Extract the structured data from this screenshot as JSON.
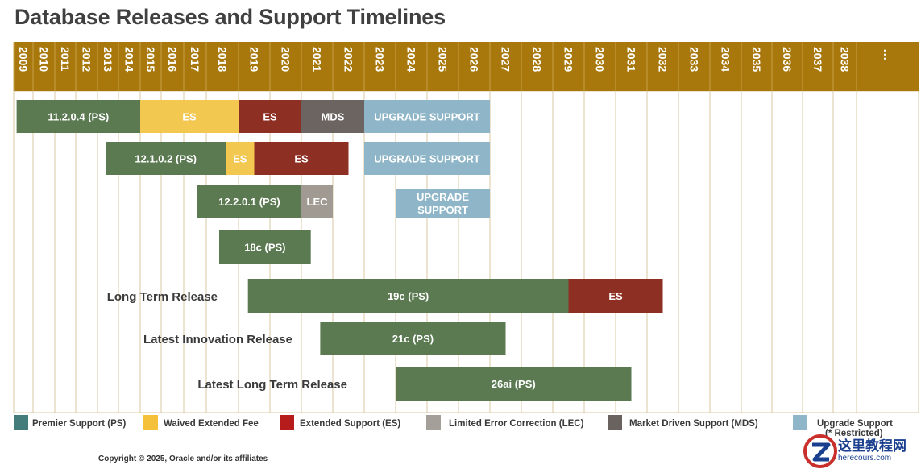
{
  "title": "Database Releases and Support Timelines",
  "copyright": "Copyright © 2025, Oracle and/or its affiliates",
  "watermark": {
    "line1": "这里教程网",
    "line2": "herecours.com"
  },
  "colors": {
    "header": "#a8780c",
    "PS": "#5b7a51",
    "WES": "#f2c851",
    "ES": "#8e2f23",
    "LEC": "#a09a93",
    "MDS": "#6b6461",
    "US": "#8fb6c8",
    "legend_PS": "#437c7b",
    "legend_WES": "#f5c13a",
    "legend_ES": "#b71c1c",
    "legend_LEC": "#a59f9a",
    "legend_MDS": "#6a625e",
    "legend_US": "#8fb6c8",
    "grid": "#d9c9a3"
  },
  "chart_data": {
    "type": "gantt",
    "title": "Database Releases and Support Timelines",
    "years": [
      "2009",
      "2010",
      "2011",
      "2012",
      "2013",
      "2014",
      "2015",
      "2016",
      "2017",
      "2018",
      "2019",
      "2020",
      "2021",
      "2022",
      "2023",
      "2024",
      "2025",
      "2026",
      "2027",
      "2028",
      "2029",
      "2030",
      "2031",
      "2032",
      "2033",
      "2034",
      "2035",
      "2036",
      "2037",
      "2038"
    ],
    "continuation": "⋮",
    "rows": [
      {
        "label": "",
        "segments": [
          {
            "text": "11.2.0.4 (PS)",
            "type": "PS",
            "start": 2009.15,
            "end": 2015.0
          },
          {
            "text": "ES",
            "type": "WES",
            "start": 2015.0,
            "end": 2019.0
          },
          {
            "text": "ES",
            "type": "ES",
            "start": 2019.0,
            "end": 2021.0
          },
          {
            "text": "MDS",
            "type": "MDS",
            "start": 2021.0,
            "end": 2023.0
          },
          {
            "text": "UPGRADE SUPPORT",
            "type": "US",
            "start": 2023.0,
            "end": 2027.0
          }
        ]
      },
      {
        "label": "",
        "segments": [
          {
            "text": "12.1.0.2 (PS)",
            "type": "PS",
            "start": 2013.4,
            "end": 2018.6
          },
          {
            "text": "ES",
            "type": "WES",
            "start": 2018.6,
            "end": 2019.5
          },
          {
            "text": "ES",
            "type": "ES",
            "start": 2019.5,
            "end": 2022.5
          },
          {
            "text": "UPGRADE SUPPORT",
            "type": "US",
            "start": 2023.0,
            "end": 2027.0
          }
        ]
      },
      {
        "label": "",
        "segments": [
          {
            "text": "12.2.0.1 (PS)",
            "type": "PS",
            "start": 2017.6,
            "end": 2021.0
          },
          {
            "text": "LEC",
            "type": "LEC",
            "start": 2021.0,
            "end": 2022.0
          },
          {
            "text": "UPGRADE SUPPORT",
            "type": "US",
            "start": 2024.0,
            "end": 2027.0
          }
        ]
      },
      {
        "label": "",
        "segments": [
          {
            "text": "18c (PS)",
            "type": "PS",
            "start": 2018.4,
            "end": 2021.3
          }
        ]
      },
      {
        "label": "Long Term Release",
        "segments": [
          {
            "text": "19c (PS)",
            "type": "PS",
            "start": 2019.3,
            "end": 2029.5
          },
          {
            "text": "ES",
            "type": "ES",
            "start": 2029.5,
            "end": 2032.5
          }
        ]
      },
      {
        "label": "Latest Innovation Release",
        "segments": [
          {
            "text": "21c (PS)",
            "type": "PS",
            "start": 2021.6,
            "end": 2027.5
          }
        ]
      },
      {
        "label": "Latest Long Term Release",
        "segments": [
          {
            "text": "26ai (PS)",
            "type": "PS",
            "start": 2024.0,
            "end": 2031.5
          }
        ]
      }
    ],
    "legend": [
      {
        "key": "PS",
        "text": "Premier Support (PS)"
      },
      {
        "key": "WES",
        "text": "Waived Extended Fee"
      },
      {
        "key": "ES",
        "text": "Extended Support (ES)"
      },
      {
        "key": "LEC",
        "text": "Limited Error Correction (LEC)"
      },
      {
        "key": "MDS",
        "text": "Market Driven Support (MDS)"
      },
      {
        "key": "US",
        "text": "Upgrade Support",
        "subtext": "(* Restricted)"
      }
    ]
  }
}
